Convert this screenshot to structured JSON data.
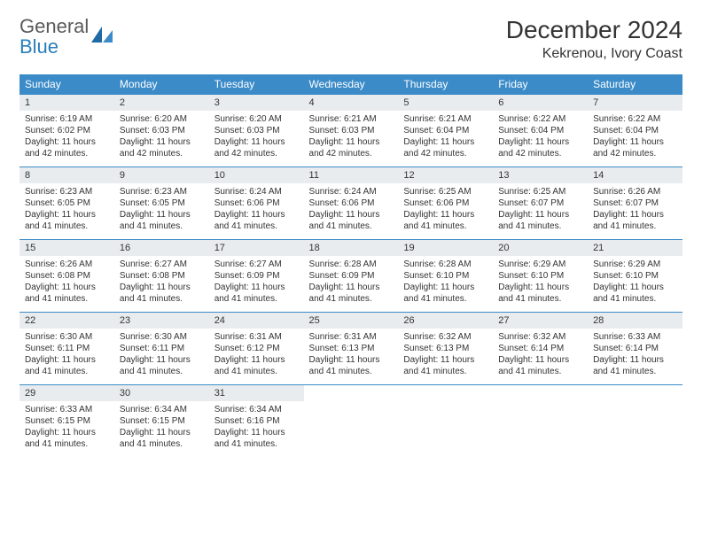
{
  "logo": {
    "text_top": "General",
    "text_bottom": "Blue"
  },
  "title": "December 2024",
  "location": "Kekrenou, Ivory Coast",
  "colors": {
    "header_bg": "#3b8bc8",
    "header_text": "#ffffff",
    "daynum_bg": "#e9ecee",
    "border": "#3b8bc8",
    "text": "#333333",
    "logo_gray": "#5a5a5a",
    "logo_blue": "#2a7fba",
    "background": "#ffffff"
  },
  "weekdays": [
    "Sunday",
    "Monday",
    "Tuesday",
    "Wednesday",
    "Thursday",
    "Friday",
    "Saturday"
  ],
  "days": [
    {
      "n": "1",
      "sr": "6:19 AM",
      "ss": "6:02 PM",
      "dl": "11 hours and 42 minutes."
    },
    {
      "n": "2",
      "sr": "6:20 AM",
      "ss": "6:03 PM",
      "dl": "11 hours and 42 minutes."
    },
    {
      "n": "3",
      "sr": "6:20 AM",
      "ss": "6:03 PM",
      "dl": "11 hours and 42 minutes."
    },
    {
      "n": "4",
      "sr": "6:21 AM",
      "ss": "6:03 PM",
      "dl": "11 hours and 42 minutes."
    },
    {
      "n": "5",
      "sr": "6:21 AM",
      "ss": "6:04 PM",
      "dl": "11 hours and 42 minutes."
    },
    {
      "n": "6",
      "sr": "6:22 AM",
      "ss": "6:04 PM",
      "dl": "11 hours and 42 minutes."
    },
    {
      "n": "7",
      "sr": "6:22 AM",
      "ss": "6:04 PM",
      "dl": "11 hours and 42 minutes."
    },
    {
      "n": "8",
      "sr": "6:23 AM",
      "ss": "6:05 PM",
      "dl": "11 hours and 41 minutes."
    },
    {
      "n": "9",
      "sr": "6:23 AM",
      "ss": "6:05 PM",
      "dl": "11 hours and 41 minutes."
    },
    {
      "n": "10",
      "sr": "6:24 AM",
      "ss": "6:06 PM",
      "dl": "11 hours and 41 minutes."
    },
    {
      "n": "11",
      "sr": "6:24 AM",
      "ss": "6:06 PM",
      "dl": "11 hours and 41 minutes."
    },
    {
      "n": "12",
      "sr": "6:25 AM",
      "ss": "6:06 PM",
      "dl": "11 hours and 41 minutes."
    },
    {
      "n": "13",
      "sr": "6:25 AM",
      "ss": "6:07 PM",
      "dl": "11 hours and 41 minutes."
    },
    {
      "n": "14",
      "sr": "6:26 AM",
      "ss": "6:07 PM",
      "dl": "11 hours and 41 minutes."
    },
    {
      "n": "15",
      "sr": "6:26 AM",
      "ss": "6:08 PM",
      "dl": "11 hours and 41 minutes."
    },
    {
      "n": "16",
      "sr": "6:27 AM",
      "ss": "6:08 PM",
      "dl": "11 hours and 41 minutes."
    },
    {
      "n": "17",
      "sr": "6:27 AM",
      "ss": "6:09 PM",
      "dl": "11 hours and 41 minutes."
    },
    {
      "n": "18",
      "sr": "6:28 AM",
      "ss": "6:09 PM",
      "dl": "11 hours and 41 minutes."
    },
    {
      "n": "19",
      "sr": "6:28 AM",
      "ss": "6:10 PM",
      "dl": "11 hours and 41 minutes."
    },
    {
      "n": "20",
      "sr": "6:29 AM",
      "ss": "6:10 PM",
      "dl": "11 hours and 41 minutes."
    },
    {
      "n": "21",
      "sr": "6:29 AM",
      "ss": "6:10 PM",
      "dl": "11 hours and 41 minutes."
    },
    {
      "n": "22",
      "sr": "6:30 AM",
      "ss": "6:11 PM",
      "dl": "11 hours and 41 minutes."
    },
    {
      "n": "23",
      "sr": "6:30 AM",
      "ss": "6:11 PM",
      "dl": "11 hours and 41 minutes."
    },
    {
      "n": "24",
      "sr": "6:31 AM",
      "ss": "6:12 PM",
      "dl": "11 hours and 41 minutes."
    },
    {
      "n": "25",
      "sr": "6:31 AM",
      "ss": "6:13 PM",
      "dl": "11 hours and 41 minutes."
    },
    {
      "n": "26",
      "sr": "6:32 AM",
      "ss": "6:13 PM",
      "dl": "11 hours and 41 minutes."
    },
    {
      "n": "27",
      "sr": "6:32 AM",
      "ss": "6:14 PM",
      "dl": "11 hours and 41 minutes."
    },
    {
      "n": "28",
      "sr": "6:33 AM",
      "ss": "6:14 PM",
      "dl": "11 hours and 41 minutes."
    },
    {
      "n": "29",
      "sr": "6:33 AM",
      "ss": "6:15 PM",
      "dl": "11 hours and 41 minutes."
    },
    {
      "n": "30",
      "sr": "6:34 AM",
      "ss": "6:15 PM",
      "dl": "11 hours and 41 minutes."
    },
    {
      "n": "31",
      "sr": "6:34 AM",
      "ss": "6:16 PM",
      "dl": "11 hours and 41 minutes."
    }
  ],
  "labels": {
    "sunrise": "Sunrise: ",
    "sunset": "Sunset: ",
    "daylight": "Daylight: "
  },
  "layout": {
    "start_weekday": 0,
    "total_days": 31,
    "columns": 7
  }
}
